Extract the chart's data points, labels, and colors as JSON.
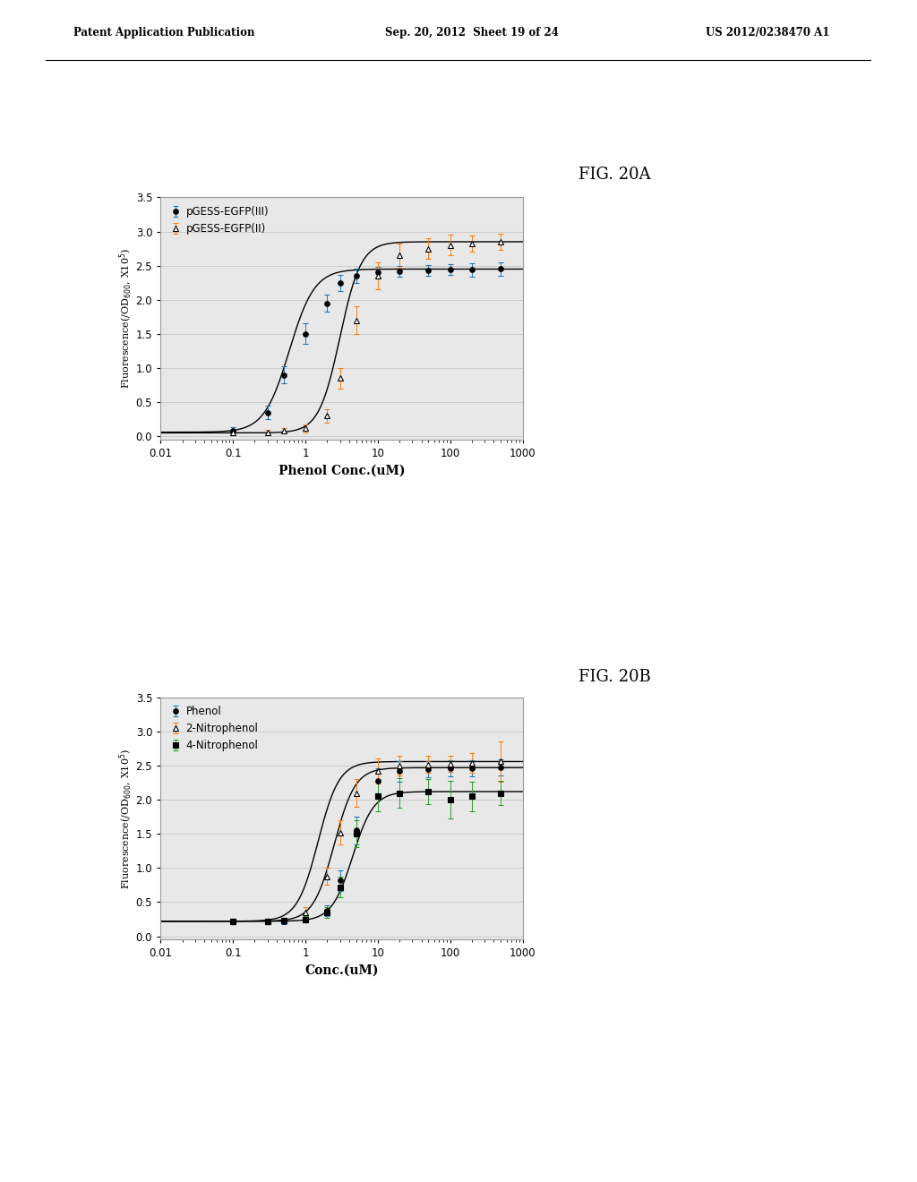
{
  "fig_label_A": "FIG. 20A",
  "fig_label_B": "FIG. 20B",
  "header_left": "Patent Application Publication",
  "header_mid": "Sep. 20, 2012  Sheet 19 of 24",
  "header_right": "US 2012/0238470 A1",
  "panel_A": {
    "series": [
      {
        "label": "pGESS-EGFP(III)",
        "marker": "o",
        "mfc": "black",
        "mec": "black",
        "x": [
          0.1,
          0.3,
          0.5,
          1.0,
          2.0,
          3.0,
          5.0,
          10.0,
          20.0,
          50.0,
          100.0,
          200.0,
          500.0
        ],
        "y": [
          0.08,
          0.35,
          0.9,
          1.5,
          1.95,
          2.25,
          2.35,
          2.4,
          2.42,
          2.43,
          2.44,
          2.44,
          2.45
        ],
        "yerr": [
          0.05,
          0.1,
          0.12,
          0.15,
          0.12,
          0.12,
          0.1,
          0.08,
          0.08,
          0.08,
          0.08,
          0.1,
          0.1
        ],
        "ec50": 0.6,
        "hill": 2.5,
        "ymin": 0.06,
        "ymax": 2.45
      },
      {
        "label": "pGESS-EGFP(II)",
        "marker": "^",
        "mfc": "white",
        "mec": "black",
        "x": [
          0.1,
          0.3,
          0.5,
          1.0,
          2.0,
          3.0,
          5.0,
          10.0,
          20.0,
          50.0,
          100.0,
          200.0,
          500.0
        ],
        "y": [
          0.05,
          0.06,
          0.08,
          0.12,
          0.3,
          0.85,
          1.7,
          2.35,
          2.65,
          2.75,
          2.8,
          2.82,
          2.85
        ],
        "yerr": [
          0.03,
          0.03,
          0.04,
          0.06,
          0.1,
          0.15,
          0.2,
          0.2,
          0.18,
          0.15,
          0.15,
          0.12,
          0.12
        ],
        "ec50": 3.0,
        "hill": 3.0,
        "ymin": 0.05,
        "ymax": 2.85
      }
    ],
    "xlabel": "Phenol Conc.(uM)",
    "ylabel": "Fluorescence(/OD$_{600}$, X10$^5$)",
    "xlim": [
      0.01,
      1000
    ],
    "ylim": [
      -0.05,
      3.5
    ],
    "yticks": [
      0.0,
      0.5,
      1.0,
      1.5,
      2.0,
      2.5,
      3.0,
      3.5
    ],
    "xtick_vals": [
      0.01,
      0.1,
      1,
      10,
      100,
      1000
    ],
    "xtick_labels": [
      "0.01",
      "0.1",
      "1",
      "10",
      "100",
      "1000"
    ]
  },
  "panel_B": {
    "series": [
      {
        "label": "Phenol",
        "marker": "o",
        "mfc": "black",
        "mec": "black",
        "x": [
          0.1,
          0.3,
          0.5,
          1.0,
          2.0,
          3.0,
          5.0,
          10.0,
          20.0,
          50.0,
          100.0,
          200.0,
          500.0
        ],
        "y": [
          0.22,
          0.22,
          0.22,
          0.25,
          0.38,
          0.82,
          1.55,
          2.28,
          2.42,
          2.45,
          2.46,
          2.46,
          2.47
        ],
        "yerr": [
          0.04,
          0.04,
          0.04,
          0.05,
          0.08,
          0.15,
          0.2,
          0.18,
          0.15,
          0.12,
          0.12,
          0.12,
          0.12
        ],
        "ec50": 2.5,
        "hill": 3.0,
        "ymin": 0.22,
        "ymax": 2.47
      },
      {
        "label": "2-Nitrophenol",
        "marker": "^",
        "mfc": "white",
        "mec": "black",
        "x": [
          0.1,
          0.3,
          0.5,
          1.0,
          2.0,
          3.0,
          5.0,
          10.0,
          20.0,
          50.0,
          100.0,
          200.0,
          500.0
        ],
        "y": [
          0.22,
          0.22,
          0.23,
          0.35,
          0.88,
          1.52,
          2.1,
          2.42,
          2.5,
          2.52,
          2.53,
          2.54,
          2.56
        ],
        "yerr": [
          0.04,
          0.04,
          0.04,
          0.08,
          0.12,
          0.18,
          0.2,
          0.18,
          0.15,
          0.12,
          0.12,
          0.15,
          0.3
        ],
        "ec50": 1.5,
        "hill": 3.0,
        "ymin": 0.22,
        "ymax": 2.56
      },
      {
        "label": "4-Nitrophenol",
        "marker": "s",
        "mfc": "black",
        "mec": "black",
        "x": [
          0.1,
          0.3,
          0.5,
          1.0,
          2.0,
          3.0,
          5.0,
          10.0,
          20.0,
          50.0,
          100.0,
          200.0,
          500.0
        ],
        "y": [
          0.22,
          0.22,
          0.23,
          0.25,
          0.35,
          0.72,
          1.5,
          2.05,
          2.1,
          2.12,
          2.0,
          2.05,
          2.1
        ],
        "yerr": [
          0.04,
          0.04,
          0.04,
          0.05,
          0.08,
          0.15,
          0.2,
          0.22,
          0.22,
          0.18,
          0.28,
          0.22,
          0.18
        ],
        "ec50": 4.5,
        "hill": 3.0,
        "ymin": 0.22,
        "ymax": 2.12
      }
    ],
    "xlabel": "Conc.(uM)",
    "ylabel": "Fluorescence(/OD$_{600}$, X10$^5$)",
    "xlim": [
      0.01,
      1000
    ],
    "ylim": [
      -0.05,
      3.5
    ],
    "yticks": [
      0.0,
      0.5,
      1.0,
      1.5,
      2.0,
      2.5,
      3.0,
      3.5
    ],
    "xtick_vals": [
      0.01,
      0.1,
      1,
      10,
      100,
      1000
    ],
    "xtick_labels": [
      "0.01",
      "0.1",
      "1",
      "10",
      "100",
      "1000"
    ]
  },
  "bg_color": "#ffffff",
  "plot_bg": "#e8e8e8",
  "grid_color": "#c0c0c0"
}
